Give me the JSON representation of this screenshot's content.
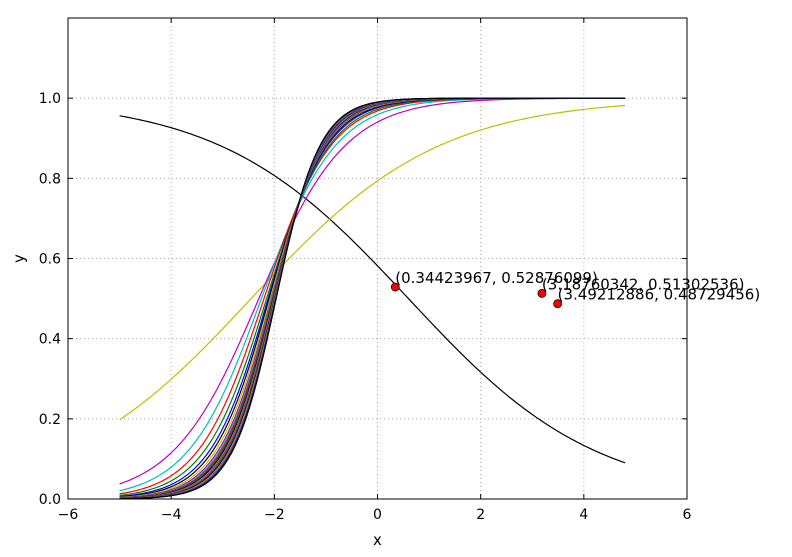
{
  "chart_data": {
    "type": "line",
    "title": "",
    "xlabel": "x",
    "ylabel": "y",
    "xlim": [
      -6,
      6
    ],
    "ylim": [
      0.0,
      1.2
    ],
    "grid": true,
    "xticks": [
      -6,
      -4,
      -2,
      0,
      2,
      4,
      6
    ],
    "xtick_labels": [
      "−6",
      "−4",
      "−2",
      "0",
      "2",
      "4",
      "6"
    ],
    "yticks": [
      0.0,
      0.2,
      0.4,
      0.6,
      0.8,
      1.0
    ],
    "ytick_labels": [
      "0.0",
      "0.2",
      "0.4",
      "0.6",
      "0.8",
      "1.0"
    ],
    "x_range": [
      -5.0,
      4.8
    ],
    "series": [
      {
        "type": "sigmoid",
        "k": -0.55,
        "x0": 0.6,
        "color": "#000000"
      },
      {
        "type": "sigmoid",
        "k": 0.55,
        "x0": -2.45,
        "color": "#bfbf00"
      },
      {
        "type": "sigmoid",
        "k": 1.2,
        "x0": -2.3,
        "color": "#bf00bf"
      },
      {
        "type": "sigmoid",
        "k": 1.4,
        "x0": -2.25,
        "color": "#00bfbf"
      },
      {
        "type": "sigmoid",
        "k": 1.55,
        "x0": -2.2,
        "color": "#ff0000"
      },
      {
        "type": "sigmoid",
        "k": 1.65,
        "x0": -2.15,
        "color": "#008000"
      },
      {
        "type": "sigmoid",
        "k": 1.75,
        "x0": -2.12,
        "color": "#0000ff"
      },
      {
        "type": "sigmoid",
        "k": 1.82,
        "x0": -2.1,
        "color": "#000000"
      },
      {
        "type": "sigmoid",
        "k": 1.88,
        "x0": -2.08,
        "color": "#bfbf00"
      },
      {
        "type": "sigmoid",
        "k": 1.93,
        "x0": -2.06,
        "color": "#bf00bf"
      },
      {
        "type": "sigmoid",
        "k": 1.97,
        "x0": -2.05,
        "color": "#00bfbf"
      },
      {
        "type": "sigmoid",
        "k": 2.0,
        "x0": -2.04,
        "color": "#ff0000"
      },
      {
        "type": "sigmoid",
        "k": 2.03,
        "x0": -2.03,
        "color": "#008000"
      },
      {
        "type": "sigmoid",
        "k": 2.06,
        "x0": -2.02,
        "color": "#0000ff"
      },
      {
        "type": "sigmoid",
        "k": 2.08,
        "x0": -2.015,
        "color": "#000000"
      },
      {
        "type": "sigmoid",
        "k": 2.1,
        "x0": -2.01,
        "color": "#bfbf00"
      },
      {
        "type": "sigmoid",
        "k": 2.12,
        "x0": -2.005,
        "color": "#bf00bf"
      },
      {
        "type": "sigmoid",
        "k": 2.14,
        "x0": -2.0,
        "color": "#00bfbf"
      },
      {
        "type": "sigmoid",
        "k": 2.16,
        "x0": -2.0,
        "color": "#ff0000"
      },
      {
        "type": "sigmoid",
        "k": 2.18,
        "x0": -1.995,
        "color": "#008000"
      },
      {
        "type": "sigmoid",
        "k": 2.2,
        "x0": -1.99,
        "color": "#0000ff"
      },
      {
        "type": "sigmoid",
        "k": 2.22,
        "x0": -1.99,
        "color": "#000000"
      },
      {
        "type": "sigmoid",
        "k": 2.24,
        "x0": -1.985,
        "color": "#bfbf00"
      },
      {
        "type": "sigmoid",
        "k": 2.26,
        "x0": -1.98,
        "color": "#bf00bf"
      },
      {
        "type": "sigmoid",
        "k": 2.28,
        "x0": -1.98,
        "color": "#00bfbf"
      },
      {
        "type": "sigmoid",
        "k": 2.3,
        "x0": -1.975,
        "color": "#ff0000"
      },
      {
        "type": "sigmoid",
        "k": 2.32,
        "x0": -1.97,
        "color": "#008000"
      },
      {
        "type": "sigmoid",
        "k": 2.34,
        "x0": -1.97,
        "color": "#0000ff"
      },
      {
        "type": "sigmoid",
        "k": 2.36,
        "x0": -1.965,
        "color": "#000000"
      }
    ],
    "points": [
      {
        "x": 0.34423967,
        "y": 0.52876099,
        "label": "(0.34423967, 0.52876099)",
        "color": "#ff0000"
      },
      {
        "x": 3.18760342,
        "y": 0.51302536,
        "label": "(3.18760342, 0.51302536)",
        "color": "#ff0000"
      },
      {
        "x": 3.49212886,
        "y": 0.48729456,
        "label": "(3.49212886, 0.48729456)",
        "color": "#ff0000"
      }
    ]
  }
}
